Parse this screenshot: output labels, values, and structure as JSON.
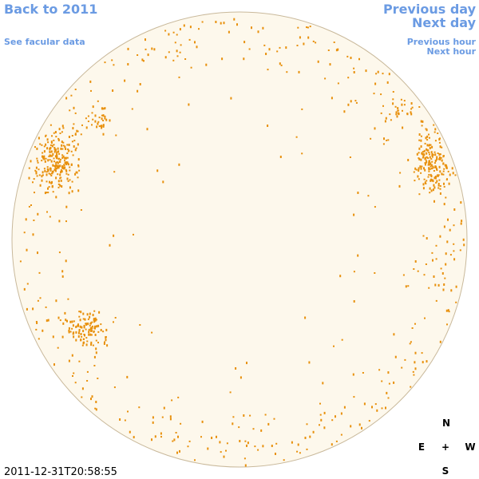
{
  "header": {
    "back_link": "Back to 2011",
    "facular_link": "See facular data"
  },
  "navigation": {
    "previous_day": "Previous day",
    "next_day": "Next day",
    "previous_hour": "Previous hour",
    "next_hour": "Next hour"
  },
  "timestamp": "2011-12-31T20:58:55",
  "compass": {
    "north": "N",
    "east": "E",
    "center": "+",
    "west": "W",
    "south": "S"
  }
}
